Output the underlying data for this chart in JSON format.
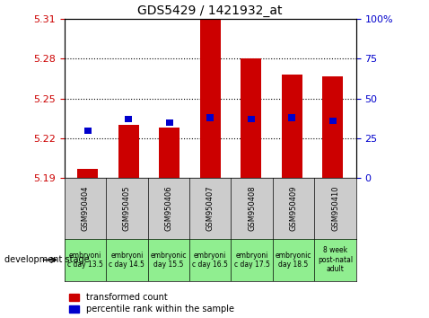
{
  "title": "GDS5429 / 1421932_at",
  "samples": [
    "GSM950404",
    "GSM950405",
    "GSM950406",
    "GSM950407",
    "GSM950408",
    "GSM950409",
    "GSM950410"
  ],
  "dev_stage_labels": [
    "embryoni\nc day 13.5",
    "embryoni\nc day 14.5",
    "embryonic\nday 15.5",
    "embryoni\nc day 16.5",
    "embryoni\nc day 17.5",
    "embryonic\nday 18.5",
    "8 week\npost-natal\nadult"
  ],
  "transformed_count": [
    5.197,
    5.23,
    5.228,
    5.31,
    5.28,
    5.268,
    5.267
  ],
  "percentile_rank": [
    30,
    37,
    35,
    38,
    37,
    38,
    36
  ],
  "red_bar_bottom": 5.19,
  "ylim_left": [
    5.19,
    5.31
  ],
  "ylim_right": [
    0,
    100
  ],
  "yticks_left": [
    5.19,
    5.22,
    5.25,
    5.28,
    5.31
  ],
  "yticks_right": [
    0,
    25,
    50,
    75,
    100
  ],
  "grid_lines": [
    5.22,
    5.25,
    5.28
  ],
  "bar_color_red": "#cc0000",
  "bar_color_blue": "#0000cc",
  "legend_red": "transformed count",
  "legend_blue": "percentile rank within the sample",
  "dev_stage_bg": "#90ee90",
  "left_axis_color": "#cc0000",
  "right_axis_color": "#0000cc",
  "figsize": [
    4.78,
    3.54
  ],
  "dpi": 100
}
